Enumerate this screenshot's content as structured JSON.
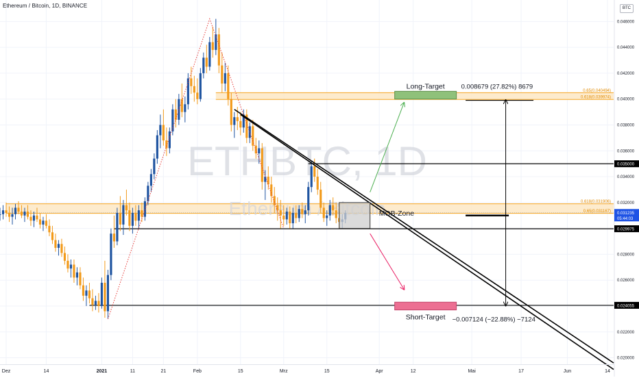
{
  "header": {
    "title": "Ethereum / Bitcoin, 1D, BINANCE",
    "currency_badge": "BTC"
  },
  "watermark": {
    "symbol": "ETHBTC, 1D",
    "name": "Ethereum / Bitcoin"
  },
  "colors": {
    "up_candle": "#1e53a0",
    "down_candle": "#f29a1a",
    "zone_fill": "#fde8c4",
    "zone_border": "#f5a623",
    "long_target": "#8fc17a",
    "short_target": "#ec6f92",
    "green_arrow": "#4caf50",
    "red_arrow": "#e91e63",
    "fib_line": "#e53935"
  },
  "chart_data": {
    "type": "candlestick",
    "y_axis": {
      "range": [
        0.0195,
        0.0475
      ],
      "ticks": [
        "0.020000",
        "0.022000",
        "0.024000",
        "0.026000",
        "0.028000",
        "0.030000",
        "0.032000",
        "0.034000",
        "0.036000",
        "0.038000",
        "0.040000",
        "0.042000",
        "0.044000",
        "0.046000"
      ]
    },
    "x_axis": {
      "range": [
        "2020-11-29",
        "2021-06-16"
      ],
      "ticks": [
        {
          "date": "2020-12-01",
          "label": "Dez"
        },
        {
          "date": "2020-12-14",
          "label": "14"
        },
        {
          "date": "2021-01-01",
          "label": "2021"
        },
        {
          "date": "2021-01-11",
          "label": "11"
        },
        {
          "date": "2021-01-21",
          "label": "21"
        },
        {
          "date": "2021-02-01",
          "label": "Feb"
        },
        {
          "date": "2021-02-15",
          "label": "15"
        },
        {
          "date": "2021-03-01",
          "label": "Mrz"
        },
        {
          "date": "2021-03-15",
          "label": "15"
        },
        {
          "date": "2021-04-01",
          "label": "Apr"
        },
        {
          "date": "2021-04-12",
          "label": "12"
        },
        {
          "date": "2021-05-01",
          "label": "Mai"
        },
        {
          "date": "2021-05-17",
          "label": "17"
        },
        {
          "date": "2021-06-01",
          "label": "Jun"
        },
        {
          "date": "2021-06-14",
          "label": "14"
        }
      ]
    },
    "price_levels": [
      {
        "value": 0.035,
        "label": "0.035000"
      },
      {
        "value": 0.029975,
        "label": "0.029975"
      },
      {
        "value": 0.024055,
        "label": "0.024055"
      }
    ],
    "current_price": {
      "value": 0.031235,
      "label": "0.031235",
      "countdown": "05:44:03"
    },
    "fib_zones": [
      {
        "top": 0.040494,
        "bottom": 0.039974,
        "label_top": "0.65(0.040494)",
        "label_bottom": "0.618(0.039974)",
        "start": "2021-02-07"
      },
      {
        "top": 0.031906,
        "bottom": 0.031167,
        "label_top": "0.618(0.031906)",
        "label_bottom": "0.65(0.031167)",
        "start": "2020-12-01"
      }
    ],
    "annotations": {
      "long_target_label": "Long-Target",
      "long_target_measure": "0.008679 (27.82%) 8679",
      "short_target_label": "Short-Target",
      "short_target_measure": "−0.007124 (−22.88%) −7124",
      "mob_zone_label": "MOB-Zone"
    },
    "target_boxes": [
      {
        "kind": "long",
        "start": "2021-04-06",
        "end": "2021-04-26",
        "top": 0.0406,
        "bottom": 0.04
      },
      {
        "kind": "short",
        "start": "2021-04-06",
        "end": "2021-04-26",
        "top": 0.0243,
        "bottom": 0.0237
      }
    ],
    "mob_box": {
      "start": "2021-03-19",
      "end": "2021-03-29",
      "top": 0.032,
      "bottom": 0.03
    },
    "trend_channel": [
      {
        "start": [
          "2021-02-13",
          0.0392
        ],
        "end": [
          "2021-06-16",
          0.0196
        ]
      },
      {
        "start": [
          "2021-02-15",
          0.0388
        ],
        "end": [
          "2021-06-16",
          0.0191
        ]
      }
    ],
    "measure_arrow": {
      "date": "2021-05-12",
      "top": 0.0399,
      "bottom": 0.02405,
      "base": 0.031
    },
    "fib_retracement_line": [
      [
        "2021-01-03",
        0.023
      ],
      [
        "2021-02-05",
        0.0462
      ],
      [
        "2021-03-01",
        0.03
      ]
    ],
    "projection_arrows": [
      {
        "kind": "up",
        "from": [
          "2021-03-29",
          0.0328
        ],
        "to": [
          "2021-04-09",
          0.0397
        ]
      },
      {
        "kind": "down",
        "from": [
          "2021-03-29",
          0.0296
        ],
        "to": [
          "2021-04-09",
          0.0253
        ]
      }
    ],
    "candles": [
      [
        "2020-11-29",
        0.0311,
        0.0316,
        0.0306,
        0.0311
      ],
      [
        "2020-11-30",
        0.0311,
        0.0318,
        0.0307,
        0.0314
      ],
      [
        "2020-12-01",
        0.0314,
        0.032,
        0.0309,
        0.0312
      ],
      [
        "2020-12-02",
        0.0312,
        0.0317,
        0.0305,
        0.0309
      ],
      [
        "2020-12-03",
        0.0309,
        0.0316,
        0.0303,
        0.0311
      ],
      [
        "2020-12-04",
        0.0311,
        0.0319,
        0.0307,
        0.0316
      ],
      [
        "2020-12-05",
        0.0316,
        0.0321,
        0.0311,
        0.0313
      ],
      [
        "2020-12-06",
        0.0313,
        0.0318,
        0.0308,
        0.031
      ],
      [
        "2020-12-07",
        0.031,
        0.0316,
        0.0305,
        0.0313
      ],
      [
        "2020-12-08",
        0.0313,
        0.0318,
        0.0307,
        0.0309
      ],
      [
        "2020-12-09",
        0.0309,
        0.0314,
        0.0302,
        0.0306
      ],
      [
        "2020-12-10",
        0.0306,
        0.0313,
        0.0301,
        0.031
      ],
      [
        "2020-12-11",
        0.031,
        0.0316,
        0.0305,
        0.0307
      ],
      [
        "2020-12-12",
        0.0307,
        0.0312,
        0.03,
        0.0303
      ],
      [
        "2020-12-13",
        0.0303,
        0.0309,
        0.0298,
        0.0306
      ],
      [
        "2020-12-14",
        0.0306,
        0.0311,
        0.03,
        0.0302
      ],
      [
        "2020-12-15",
        0.0302,
        0.0307,
        0.0294,
        0.0297
      ],
      [
        "2020-12-16",
        0.0297,
        0.0302,
        0.0288,
        0.0291
      ],
      [
        "2020-12-17",
        0.0291,
        0.0296,
        0.0282,
        0.0285
      ],
      [
        "2020-12-18",
        0.0285,
        0.0291,
        0.0279,
        0.0288
      ],
      [
        "2020-12-19",
        0.0288,
        0.0292,
        0.0278,
        0.0281
      ],
      [
        "2020-12-20",
        0.0281,
        0.0286,
        0.0272,
        0.0275
      ],
      [
        "2020-12-21",
        0.0275,
        0.028,
        0.0266,
        0.0269
      ],
      [
        "2020-12-22",
        0.0269,
        0.0276,
        0.0262,
        0.0272
      ],
      [
        "2020-12-23",
        0.0272,
        0.0276,
        0.0258,
        0.0262
      ],
      [
        "2020-12-24",
        0.0262,
        0.027,
        0.0256,
        0.0266
      ],
      [
        "2020-12-25",
        0.0266,
        0.027,
        0.0253,
        0.0256
      ],
      [
        "2020-12-26",
        0.0256,
        0.0262,
        0.0244,
        0.0248
      ],
      [
        "2020-12-27",
        0.0248,
        0.0256,
        0.024,
        0.0252
      ],
      [
        "2020-12-28",
        0.0252,
        0.0258,
        0.0242,
        0.0246
      ],
      [
        "2020-12-29",
        0.0246,
        0.0253,
        0.0236,
        0.0241
      ],
      [
        "2020-12-30",
        0.0241,
        0.0248,
        0.0237,
        0.0244
      ],
      [
        "2020-12-31",
        0.0244,
        0.025,
        0.0235,
        0.024
      ],
      [
        "2021-01-01",
        0.024,
        0.0262,
        0.0238,
        0.0258
      ],
      [
        "2021-01-02",
        0.0258,
        0.0275,
        0.0231,
        0.0236
      ],
      [
        "2021-01-03",
        0.0236,
        0.0268,
        0.023,
        0.0264
      ],
      [
        "2021-01-04",
        0.0264,
        0.03,
        0.026,
        0.0296
      ],
      [
        "2021-01-05",
        0.0296,
        0.031,
        0.0285,
        0.029
      ],
      [
        "2021-01-06",
        0.029,
        0.0316,
        0.0287,
        0.0312
      ],
      [
        "2021-01-07",
        0.0312,
        0.0325,
        0.0298,
        0.0303
      ],
      [
        "2021-01-08",
        0.0303,
        0.0322,
        0.0295,
        0.0318
      ],
      [
        "2021-01-09",
        0.0318,
        0.033,
        0.031,
        0.0314
      ],
      [
        "2021-01-10",
        0.0314,
        0.032,
        0.0298,
        0.0302
      ],
      [
        "2021-01-11",
        0.0302,
        0.0316,
        0.0296,
        0.0312
      ],
      [
        "2021-01-12",
        0.0312,
        0.0318,
        0.0302,
        0.0306
      ],
      [
        "2021-01-13",
        0.0306,
        0.0318,
        0.03,
        0.0314
      ],
      [
        "2021-01-14",
        0.0314,
        0.032,
        0.0305,
        0.0309
      ],
      [
        "2021-01-15",
        0.0309,
        0.0324,
        0.0306,
        0.0321
      ],
      [
        "2021-01-16",
        0.0321,
        0.0336,
        0.0318,
        0.0333
      ],
      [
        "2021-01-17",
        0.0333,
        0.0346,
        0.0328,
        0.0342
      ],
      [
        "2021-01-18",
        0.0342,
        0.0358,
        0.0338,
        0.0354
      ],
      [
        "2021-01-19",
        0.0354,
        0.0376,
        0.035,
        0.0372
      ],
      [
        "2021-01-20",
        0.0372,
        0.0388,
        0.0362,
        0.038
      ],
      [
        "2021-01-21",
        0.038,
        0.0392,
        0.0364,
        0.0368
      ],
      [
        "2021-01-22",
        0.0368,
        0.0378,
        0.0356,
        0.0362
      ],
      [
        "2021-01-23",
        0.0362,
        0.0378,
        0.0358,
        0.0375
      ],
      [
        "2021-01-24",
        0.0375,
        0.0396,
        0.0372,
        0.0392
      ],
      [
        "2021-01-25",
        0.0392,
        0.04,
        0.0378,
        0.0384
      ],
      [
        "2021-01-26",
        0.0384,
        0.0404,
        0.038,
        0.04
      ],
      [
        "2021-01-27",
        0.04,
        0.0412,
        0.0386,
        0.039
      ],
      [
        "2021-01-28",
        0.039,
        0.0402,
        0.0382,
        0.0396
      ],
      [
        "2021-01-29",
        0.0396,
        0.042,
        0.0392,
        0.0416
      ],
      [
        "2021-01-30",
        0.0416,
        0.0425,
        0.0404,
        0.041
      ],
      [
        "2021-01-31",
        0.041,
        0.0418,
        0.0398,
        0.0405
      ],
      [
        "2021-02-01",
        0.0405,
        0.0416,
        0.0396,
        0.04
      ],
      [
        "2021-02-02",
        0.04,
        0.0424,
        0.0398,
        0.042
      ],
      [
        "2021-02-03",
        0.042,
        0.0436,
        0.0416,
        0.0432
      ],
      [
        "2021-02-04",
        0.0432,
        0.0442,
        0.042,
        0.0425
      ],
      [
        "2021-02-05",
        0.0425,
        0.0448,
        0.0422,
        0.0444
      ],
      [
        "2021-02-06",
        0.0444,
        0.0456,
        0.0432,
        0.0438
      ],
      [
        "2021-02-07",
        0.0438,
        0.0462,
        0.0434,
        0.045
      ],
      [
        "2021-02-08",
        0.045,
        0.0455,
        0.042,
        0.0426
      ],
      [
        "2021-02-09",
        0.0426,
        0.0436,
        0.0405,
        0.0412
      ],
      [
        "2021-02-10",
        0.0412,
        0.0428,
        0.0406,
        0.042
      ],
      [
        "2021-02-11",
        0.042,
        0.0426,
        0.0395,
        0.04
      ],
      [
        "2021-02-12",
        0.04,
        0.0405,
        0.0375,
        0.038
      ],
      [
        "2021-02-13",
        0.038,
        0.039,
        0.037,
        0.0386
      ],
      [
        "2021-02-14",
        0.0386,
        0.0394,
        0.0376,
        0.0383
      ],
      [
        "2021-02-15",
        0.0383,
        0.039,
        0.0372,
        0.0378
      ],
      [
        "2021-02-16",
        0.0378,
        0.0392,
        0.0374,
        0.0388
      ],
      [
        "2021-02-17",
        0.0388,
        0.0392,
        0.0366,
        0.037
      ],
      [
        "2021-02-18",
        0.037,
        0.0382,
        0.0366,
        0.0379
      ],
      [
        "2021-02-19",
        0.0379,
        0.0384,
        0.036,
        0.0364
      ],
      [
        "2021-02-20",
        0.0364,
        0.037,
        0.0354,
        0.0358
      ],
      [
        "2021-02-21",
        0.0358,
        0.0368,
        0.035,
        0.0362
      ],
      [
        "2021-02-22",
        0.0362,
        0.0366,
        0.033,
        0.0336
      ],
      [
        "2021-02-23",
        0.0336,
        0.0345,
        0.0322,
        0.034
      ],
      [
        "2021-02-24",
        0.034,
        0.0348,
        0.033,
        0.0334
      ],
      [
        "2021-02-25",
        0.0334,
        0.034,
        0.032,
        0.0325
      ],
      [
        "2021-02-26",
        0.0325,
        0.0332,
        0.0312,
        0.0318
      ],
      [
        "2021-02-27",
        0.0318,
        0.0324,
        0.0306,
        0.0314
      ],
      [
        "2021-02-28",
        0.0314,
        0.0322,
        0.03,
        0.031
      ],
      [
        "2021-03-01",
        0.031,
        0.0318,
        0.0302,
        0.0307
      ],
      [
        "2021-03-02",
        0.0307,
        0.0316,
        0.0303,
        0.0313
      ],
      [
        "2021-03-03",
        0.0313,
        0.0317,
        0.03,
        0.0304
      ],
      [
        "2021-03-04",
        0.0304,
        0.0316,
        0.03,
        0.0312
      ],
      [
        "2021-03-05",
        0.0312,
        0.0318,
        0.0304,
        0.0308
      ],
      [
        "2021-03-06",
        0.0308,
        0.0318,
        0.0305,
        0.0315
      ],
      [
        "2021-03-07",
        0.0315,
        0.032,
        0.0308,
        0.0311
      ],
      [
        "2021-03-08",
        0.0311,
        0.0318,
        0.0304,
        0.0314
      ],
      [
        "2021-03-09",
        0.0314,
        0.0336,
        0.031,
        0.0332
      ],
      [
        "2021-03-10",
        0.0332,
        0.0352,
        0.0328,
        0.0348
      ],
      [
        "2021-03-11",
        0.0348,
        0.0354,
        0.0336,
        0.034
      ],
      [
        "2021-03-12",
        0.034,
        0.0346,
        0.0326,
        0.033
      ],
      [
        "2021-03-13",
        0.033,
        0.0336,
        0.0312,
        0.0316
      ],
      [
        "2021-03-14",
        0.0316,
        0.032,
        0.0305,
        0.0308
      ],
      [
        "2021-03-15",
        0.0308,
        0.0314,
        0.0302,
        0.031
      ],
      [
        "2021-03-16",
        0.031,
        0.0322,
        0.0306,
        0.0318
      ],
      [
        "2021-03-17",
        0.0318,
        0.0324,
        0.031,
        0.0314
      ],
      [
        "2021-03-18",
        0.0314,
        0.032,
        0.0304,
        0.0308
      ],
      [
        "2021-03-19",
        0.0308,
        0.0313,
        0.03,
        0.0305
      ],
      [
        "2021-03-20",
        0.0305,
        0.0311,
        0.03,
        0.0307
      ],
      [
        "2021-03-21",
        0.0307,
        0.0314,
        0.0304,
        0.0312
      ]
    ]
  }
}
